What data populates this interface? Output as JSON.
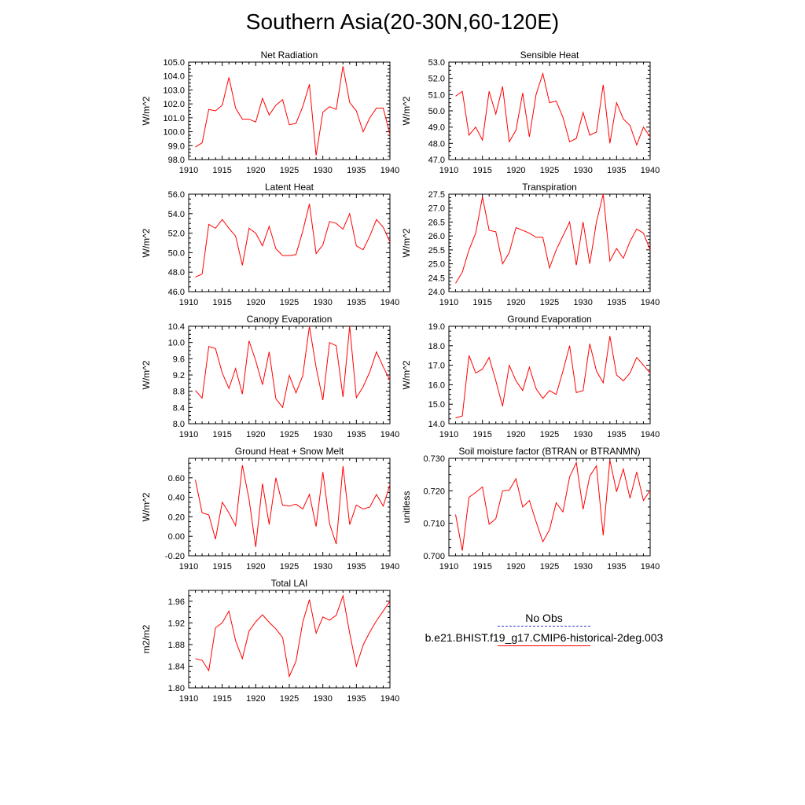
{
  "title": "Southern Asia(20-30N,60-120E)",
  "line_color": "#ff0000",
  "years": [
    1911,
    1912,
    1913,
    1914,
    1915,
    1916,
    1917,
    1918,
    1919,
    1920,
    1921,
    1922,
    1923,
    1924,
    1925,
    1926,
    1927,
    1928,
    1929,
    1930,
    1931,
    1932,
    1933,
    1934,
    1935,
    1936,
    1937,
    1938,
    1939,
    1940
  ],
  "legend": {
    "obs_label": "No Obs",
    "obs_color": "#3a3ad0",
    "model_label": "b.e21.BHIST.f19_g17.CMIP6-historical-2deg.003",
    "model_color": "#ff0000"
  },
  "chart_data": [
    {
      "type": "line",
      "title": "Net Radiation",
      "ylabel": "W/m^2",
      "xlim": [
        1910,
        1940
      ],
      "ylim": [
        98,
        105
      ],
      "xticks": [
        "1910",
        "1915",
        "1920",
        "1925",
        "1930",
        "1935",
        "1940"
      ],
      "yticks": [
        "98.0",
        "99.0",
        "100.0",
        "101.0",
        "102.0",
        "103.0",
        "104.0",
        "105.0"
      ],
      "values": [
        98.9,
        99.2,
        101.6,
        101.5,
        101.9,
        103.9,
        101.7,
        100.9,
        100.9,
        100.7,
        102.4,
        101.2,
        101.9,
        102.3,
        100.5,
        100.6,
        101.8,
        103.4,
        98.3,
        101.4,
        101.8,
        101.6,
        104.7,
        102.1,
        101.5,
        100.0,
        101.0,
        101.7,
        101.7,
        99.8
      ]
    },
    {
      "type": "line",
      "title": "Sensible Heat",
      "ylabel": "W/m^2",
      "xlim": [
        1910,
        1940
      ],
      "ylim": [
        47,
        53
      ],
      "xticks": [
        "1910",
        "1915",
        "1920",
        "1925",
        "1930",
        "1935",
        "1940"
      ],
      "yticks": [
        "47.0",
        "48.0",
        "49.0",
        "50.0",
        "51.0",
        "52.0",
        "53.0"
      ],
      "values": [
        50.9,
        51.2,
        48.5,
        49.0,
        48.2,
        51.2,
        49.8,
        51.5,
        48.1,
        48.8,
        51.1,
        48.4,
        51.0,
        52.3,
        50.5,
        50.6,
        49.6,
        48.1,
        48.3,
        49.9,
        48.5,
        48.7,
        51.6,
        48.0,
        50.5,
        49.5,
        49.1,
        47.9,
        49.0,
        48.4
      ]
    },
    {
      "type": "line",
      "title": "Latent Heat",
      "ylabel": "W/m^2",
      "xlim": [
        1910,
        1940
      ],
      "ylim": [
        46,
        56
      ],
      "xticks": [
        "1910",
        "1915",
        "1920",
        "1925",
        "1930",
        "1935",
        "1940"
      ],
      "yticks": [
        "46.0",
        "48.0",
        "50.0",
        "52.0",
        "54.0",
        "56.0"
      ],
      "values": [
        47.5,
        47.8,
        52.9,
        52.5,
        53.4,
        52.5,
        51.7,
        48.7,
        52.5,
        52.0,
        50.7,
        52.7,
        50.4,
        49.7,
        49.7,
        49.8,
        52.2,
        55.0,
        49.9,
        50.8,
        53.2,
        53.0,
        52.4,
        54.0,
        50.7,
        50.3,
        51.7,
        53.4,
        52.6,
        51.1
      ]
    },
    {
      "type": "line",
      "title": "Transpiration",
      "ylabel": "W/m^2",
      "xlim": [
        1910,
        1940
      ],
      "ylim": [
        24,
        27.5
      ],
      "xticks": [
        "1910",
        "1915",
        "1920",
        "1925",
        "1930",
        "1935",
        "1940"
      ],
      "yticks": [
        "24.0",
        "24.5",
        "25.0",
        "25.5",
        "26.0",
        "26.5",
        "27.0",
        "27.5"
      ],
      "values": [
        24.3,
        24.7,
        25.5,
        26.1,
        27.4,
        26.2,
        26.15,
        25.0,
        25.4,
        26.3,
        26.2,
        26.1,
        25.95,
        25.95,
        24.85,
        25.5,
        26.0,
        26.5,
        24.95,
        26.5,
        25.0,
        26.5,
        27.5,
        25.1,
        25.55,
        25.2,
        25.8,
        26.25,
        26.1,
        25.5
      ]
    },
    {
      "type": "line",
      "title": "Canopy Evaporation",
      "ylabel": "W/m^2",
      "xlim": [
        1910,
        1940
      ],
      "ylim": [
        8,
        10.4
      ],
      "xticks": [
        "1910",
        "1915",
        "1920",
        "1925",
        "1930",
        "1935",
        "1940"
      ],
      "yticks": [
        "8.0",
        "8.4",
        "8.8",
        "9.2",
        "9.6",
        "10.0",
        "10.4"
      ],
      "values": [
        8.82,
        8.63,
        9.9,
        9.85,
        9.25,
        8.87,
        9.36,
        8.73,
        10.04,
        9.55,
        8.96,
        9.77,
        8.62,
        8.4,
        9.19,
        8.76,
        9.18,
        10.4,
        9.39,
        8.58,
        10.0,
        9.92,
        8.66,
        10.4,
        8.64,
        8.91,
        9.28,
        9.77,
        9.4,
        9.07
      ]
    },
    {
      "type": "line",
      "title": "Ground Evaporation",
      "ylabel": "W/m^2",
      "xlim": [
        1910,
        1940
      ],
      "ylim": [
        14,
        19
      ],
      "xticks": [
        "1910",
        "1915",
        "1920",
        "1925",
        "1930",
        "1935",
        "1940"
      ],
      "yticks": [
        "14.0",
        "15.0",
        "16.0",
        "17.0",
        "18.0",
        "19.0"
      ],
      "values": [
        14.3,
        14.4,
        17.5,
        16.6,
        16.8,
        17.4,
        16.2,
        14.9,
        17.0,
        16.2,
        15.7,
        16.9,
        15.8,
        15.3,
        15.7,
        15.5,
        16.7,
        18.0,
        15.6,
        15.7,
        18.1,
        16.7,
        16.1,
        18.5,
        16.5,
        16.2,
        16.6,
        17.4,
        17.0,
        16.6
      ]
    },
    {
      "type": "line",
      "title": "Ground Heat + Snow Melt",
      "ylabel": "W/m^2",
      "xlim": [
        1910,
        1940
      ],
      "ylim": [
        -0.2,
        0.8
      ],
      "xticks": [
        "1910",
        "1915",
        "1920",
        "1925",
        "1930",
        "1935",
        "1940"
      ],
      "yticks": [
        "-0.20",
        "0.00",
        "0.20",
        "0.40",
        "0.60"
      ],
      "values": [
        0.58,
        0.24,
        0.22,
        -0.03,
        0.35,
        0.24,
        0.11,
        0.73,
        0.38,
        -0.11,
        0.54,
        0.12,
        0.6,
        0.32,
        0.31,
        0.33,
        0.28,
        0.43,
        0.1,
        0.66,
        0.13,
        -0.08,
        0.72,
        0.12,
        0.32,
        0.28,
        0.3,
        0.43,
        0.31,
        0.53
      ]
    },
    {
      "type": "line",
      "title": "Soil moisture factor (BTRAN or BTRANMN)",
      "ylabel": "unitless",
      "xlim": [
        1910,
        1940
      ],
      "ylim": [
        0.7,
        0.73
      ],
      "xticks": [
        "1910",
        "1915",
        "1920",
        "1925",
        "1930",
        "1935",
        "1940"
      ],
      "yticks": [
        "0.700",
        "0.710",
        "0.720",
        "0.730"
      ],
      "values": [
        0.7127,
        0.7016,
        0.718,
        0.7195,
        0.7212,
        0.7097,
        0.7114,
        0.72,
        0.7202,
        0.7237,
        0.715,
        0.717,
        0.7105,
        0.7043,
        0.708,
        0.7163,
        0.7135,
        0.7243,
        0.7287,
        0.7143,
        0.7245,
        0.7277,
        0.7063,
        0.7295,
        0.7197,
        0.7267,
        0.7177,
        0.7258,
        0.717,
        0.7201
      ]
    },
    {
      "type": "line",
      "title": "Total LAI",
      "ylabel": "m2/m2",
      "xlim": [
        1910,
        1940
      ],
      "ylim": [
        1.8,
        1.98
      ],
      "xticks": [
        "1910",
        "1915",
        "1920",
        "1925",
        "1930",
        "1935",
        "1940"
      ],
      "yticks": [
        "1.80",
        "1.84",
        "1.88",
        "1.92",
        "1.96"
      ],
      "values": [
        1.854,
        1.851,
        1.832,
        1.911,
        1.92,
        1.942,
        1.887,
        1.854,
        1.905,
        1.922,
        1.935,
        1.921,
        1.909,
        1.893,
        1.821,
        1.849,
        1.921,
        1.963,
        1.901,
        1.931,
        1.925,
        1.934,
        1.97,
        1.901,
        1.84,
        1.879,
        1.903,
        1.924,
        1.942,
        1.96
      ]
    }
  ]
}
